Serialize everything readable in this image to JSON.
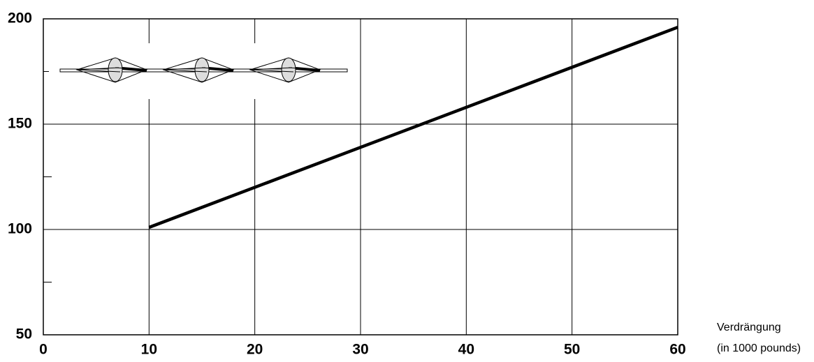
{
  "chart_data": {
    "type": "line",
    "x": [
      10,
      60
    ],
    "values": [
      101,
      196
    ],
    "color": "#000000",
    "xlim": [
      0,
      60
    ],
    "xticks": [
      0,
      10,
      20,
      30,
      40,
      50,
      60
    ],
    "ylim": [
      50,
      200
    ],
    "yticks": [
      50,
      100,
      150,
      200
    ],
    "yminorticks": [
      75,
      125,
      175
    ],
    "grid": true,
    "xlabel": [
      "Verdrängung",
      "(in 1000 pounds)"
    ]
  }
}
